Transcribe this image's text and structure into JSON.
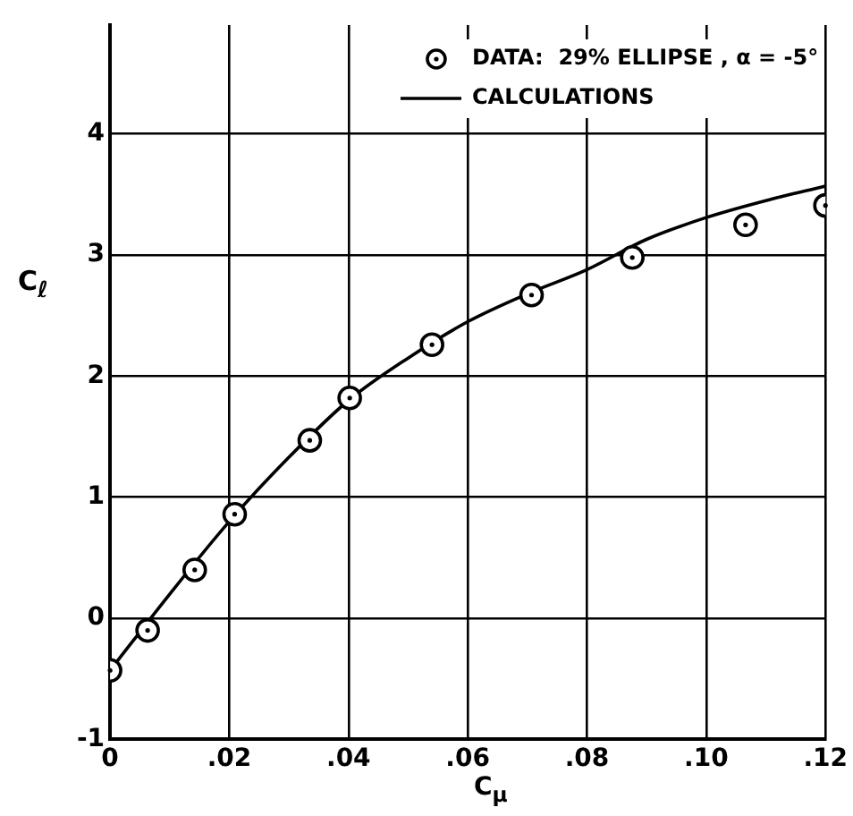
{
  "chart_data": {
    "type": "scatter",
    "xlabel": "C$_{μ}$",
    "ylabel": "C$_{ℓ}$",
    "xlim": [
      0,
      0.12
    ],
    "xticks": [
      0,
      {
        "value": 0.02,
        "label": ".02"
      },
      {
        "value": 0.04,
        "label": ".04"
      },
      {
        "value": 0.06,
        "label": ".06"
      },
      {
        "value": 0.08,
        "label": ".08"
      },
      {
        "value": 0.1,
        "label": ".10"
      },
      {
        "value": 0.12,
        "label": ".12"
      }
    ],
    "ylim": [
      -1,
      4.9
    ],
    "yticks": [
      -1,
      0,
      1,
      2,
      3,
      4
    ],
    "grid": true,
    "legend": "top right",
    "series": [
      {
        "name": "DATA:  29% ELLIPSE , α = -5°",
        "marker": "circle",
        "color": "#000000",
        "x": [
          0,
          0.0063,
          0.0142,
          0.0209,
          0.0335,
          0.0402,
          0.054,
          0.0707,
          0.0876,
          0.1066,
          0.12
        ],
        "values": [
          -0.43,
          -0.1,
          0.4,
          0.86,
          1.47,
          1.82,
          2.26,
          2.67,
          2.98,
          3.25,
          3.41
        ]
      },
      {
        "name": "CALCULATIONS",
        "type": "line",
        "line_style": "solid",
        "color": "#000000",
        "x": [
          0,
          0.01,
          0.02,
          0.03,
          0.04,
          0.05,
          0.06,
          0.07,
          0.08,
          0.09,
          0.1,
          0.11,
          0.12
        ],
        "values": [
          -0.43,
          0.2,
          0.8,
          1.33,
          1.8,
          2.15,
          2.45,
          2.68,
          2.88,
          3.13,
          3.31,
          3.45,
          3.57
        ]
      }
    ]
  }
}
